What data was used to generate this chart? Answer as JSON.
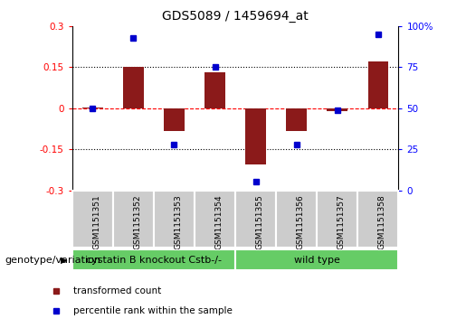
{
  "title": "GDS5089 / 1459694_at",
  "samples": [
    "GSM1151351",
    "GSM1151352",
    "GSM1151353",
    "GSM1151354",
    "GSM1151355",
    "GSM1151356",
    "GSM1151357",
    "GSM1151358"
  ],
  "red_bars": [
    0.003,
    0.152,
    -0.082,
    0.13,
    -0.205,
    -0.082,
    -0.01,
    0.17
  ],
  "blue_dots": [
    50,
    93,
    28,
    75,
    5,
    28,
    49,
    95
  ],
  "ylim_left": [
    -0.3,
    0.3
  ],
  "ylim_right": [
    0,
    100
  ],
  "yticks_left": [
    -0.3,
    -0.15,
    0.0,
    0.15,
    0.3
  ],
  "yticks_right": [
    0,
    25,
    50,
    75,
    100
  ],
  "ytick_labels_left": [
    "-0.3",
    "-0.15",
    "0",
    "0.15",
    "0.3"
  ],
  "ytick_labels_right": [
    "0",
    "25",
    "50",
    "75",
    "100%"
  ],
  "hlines": [
    0.15,
    0.0,
    -0.15
  ],
  "hline_styles": [
    "dotted",
    "dashed",
    "dotted"
  ],
  "hline_colors": [
    "black",
    "red",
    "black"
  ],
  "group1_label": "cystatin B knockout Cstb-/-",
  "group2_label": "wild type",
  "genotype_label": "genotype/variation",
  "legend1_label": "transformed count",
  "legend2_label": "percentile rank within the sample",
  "red_color": "#8B1A1A",
  "blue_color": "#0000CD",
  "green_color": "#66CC66",
  "gray_color": "#CCCCCC",
  "bar_width": 0.5,
  "title_fontsize": 10,
  "tick_fontsize": 7.5,
  "sample_fontsize": 6.5,
  "group_fontsize": 8,
  "legend_fontsize": 7.5,
  "genotype_fontsize": 8
}
